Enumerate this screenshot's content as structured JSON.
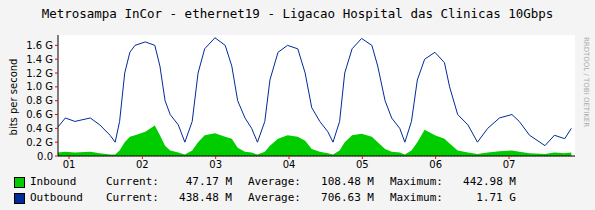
{
  "chart_data": {
    "type": "line",
    "title": "Metrosampa InCor - ethernet19 - Ligacao Hospital das Clinicas 10Gbps",
    "y_label": "bits per second",
    "annotations": [
      "RRDTOOL / TOBI OETIKER"
    ],
    "grid": true,
    "legend": "bottom",
    "x": [
      0.85,
      0.95,
      1.08,
      1.29,
      1.42,
      1.56,
      1.63,
      1.69,
      1.76,
      1.83,
      1.9,
      2.04,
      2.17,
      2.24,
      2.31,
      2.38,
      2.49,
      2.58,
      2.68,
      2.76,
      2.85,
      2.99,
      3.13,
      3.22,
      3.3,
      3.4,
      3.49,
      3.57,
      3.67,
      3.74,
      3.85,
      3.98,
      4.12,
      4.22,
      4.31,
      4.42,
      4.53,
      4.6,
      4.69,
      4.76,
      4.86,
      4.99,
      5.13,
      5.21,
      5.31,
      5.4,
      5.51,
      5.58,
      5.67,
      5.75,
      5.85,
      5.99,
      6.12,
      6.19,
      6.3,
      6.44,
      6.57,
      6.71,
      6.87,
      7.04,
      7.14,
      7.28,
      7.49,
      7.62,
      7.76,
      7.85
    ],
    "xlim": [
      0.85,
      7.9
    ],
    "xticks": [
      {
        "value": 1,
        "label": "01"
      },
      {
        "value": 2,
        "label": "02"
      },
      {
        "value": 3,
        "label": "03"
      },
      {
        "value": 4,
        "label": "04"
      },
      {
        "value": 5,
        "label": "05"
      },
      {
        "value": 6,
        "label": "06"
      },
      {
        "value": 7,
        "label": "07"
      }
    ],
    "ylim": [
      0,
      1.75
    ],
    "yticks": [
      {
        "value": 0,
        "label": "0.0"
      },
      {
        "value": 0.2,
        "label": "0.2 G"
      },
      {
        "value": 0.4,
        "label": "0.4 G"
      },
      {
        "value": 0.6,
        "label": "0.6 G"
      },
      {
        "value": 0.8,
        "label": "0.8 G"
      },
      {
        "value": 1.0,
        "label": "1.0 G"
      },
      {
        "value": 1.2,
        "label": "1.2 G"
      },
      {
        "value": 1.4,
        "label": "1.4 G"
      },
      {
        "value": 1.6,
        "label": "1.6 G"
      }
    ],
    "series": [
      {
        "name": "Inbound",
        "type": "area",
        "color": "#00cc00",
        "stats": [
          {
            "label": "Current:",
            "text": "47.17 M"
          },
          {
            "label": "Average:",
            "text": "108.48 M"
          },
          {
            "label": "Maximum:",
            "text": "442.98 M"
          }
        ],
        "values": [
          0.05,
          0.06,
          0.05,
          0.06,
          0.04,
          0.02,
          0.02,
          0.08,
          0.2,
          0.28,
          0.3,
          0.35,
          0.44,
          0.3,
          0.15,
          0.08,
          0.05,
          0.02,
          0.08,
          0.2,
          0.3,
          0.33,
          0.28,
          0.25,
          0.12,
          0.06,
          0.05,
          0.02,
          0.06,
          0.15,
          0.25,
          0.3,
          0.28,
          0.22,
          0.1,
          0.06,
          0.04,
          0.02,
          0.08,
          0.2,
          0.3,
          0.32,
          0.28,
          0.2,
          0.1,
          0.06,
          0.05,
          0.02,
          0.08,
          0.2,
          0.38,
          0.3,
          0.25,
          0.18,
          0.08,
          0.05,
          0.03,
          0.05,
          0.07,
          0.08,
          0.06,
          0.04,
          0.03,
          0.05,
          0.04,
          0.05
        ]
      },
      {
        "name": "Outbound",
        "type": "line",
        "color": "#002a97",
        "stats": [
          {
            "label": "Current:",
            "text": "438.48 M"
          },
          {
            "label": "Average:",
            "text": "706.63 M"
          },
          {
            "label": "Maximum:",
            "text": "1.71 G"
          }
        ],
        "values": [
          0.42,
          0.55,
          0.5,
          0.55,
          0.45,
          0.3,
          0.2,
          0.5,
          1.2,
          1.5,
          1.6,
          1.65,
          1.6,
          1.3,
          0.8,
          0.6,
          0.45,
          0.2,
          0.5,
          1.2,
          1.55,
          1.71,
          1.6,
          1.3,
          0.8,
          0.55,
          0.4,
          0.2,
          0.5,
          1.1,
          1.5,
          1.6,
          1.55,
          1.2,
          0.7,
          0.5,
          0.35,
          0.2,
          0.5,
          1.2,
          1.55,
          1.7,
          1.6,
          1.3,
          0.8,
          0.55,
          0.4,
          0.2,
          0.5,
          1.1,
          1.4,
          1.5,
          1.35,
          1.0,
          0.6,
          0.45,
          0.2,
          0.4,
          0.55,
          0.6,
          0.5,
          0.3,
          0.15,
          0.3,
          0.25,
          0.4
        ]
      }
    ]
  }
}
